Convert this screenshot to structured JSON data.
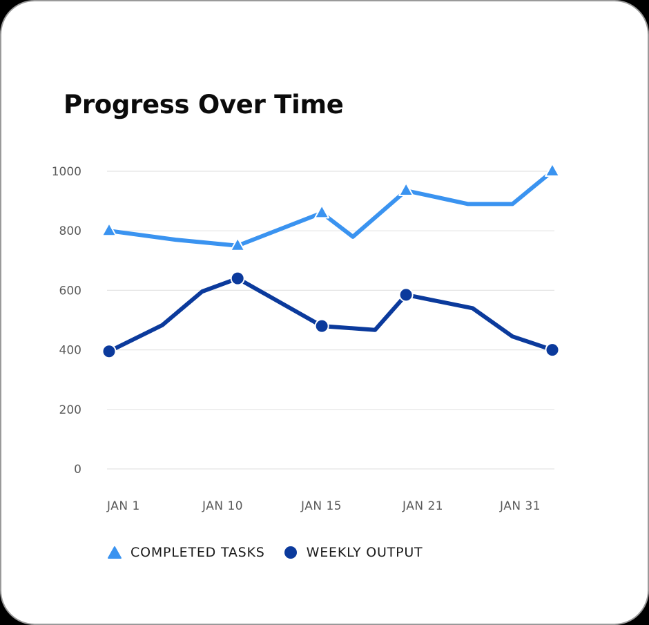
{
  "card": {
    "title": "Progress Over Time"
  },
  "colors": {
    "completed_tasks": "#3a93f0",
    "weekly_output": "#0b3a9c",
    "grid": "#e4e4e4",
    "tick_text": "#5a5a5a"
  },
  "legend": [
    {
      "label": "COMPLETED TASKS",
      "marker": "triangle-icon",
      "color": "#3a93f0"
    },
    {
      "label": "WEEKLY OUTPUT",
      "marker": "circle-icon",
      "color": "#0b3a9c"
    }
  ],
  "chart_data": {
    "type": "line",
    "title": "Progress Over Time",
    "xlabel": "",
    "ylabel": "",
    "ylim": [
      0,
      1000
    ],
    "yticks": [
      0,
      200,
      400,
      600,
      800,
      1000
    ],
    "grid": true,
    "legend_position": "bottom-left",
    "x_tick_labels": [
      "JAN 1",
      "JAN 10",
      "JAN 15",
      "JAN 21",
      "JAN 31"
    ],
    "series": [
      {
        "name": "COMPLETED TASKS",
        "marker": "triangle",
        "color": "#3a93f0",
        "points": [
          {
            "x": 0.0,
            "y": 800,
            "label": "JAN 1",
            "marker": true
          },
          {
            "x": 0.15,
            "y": 770,
            "marker": false
          },
          {
            "x": 0.29,
            "y": 750,
            "label": "JAN 10",
            "marker": true
          },
          {
            "x": 0.48,
            "y": 860,
            "label": "JAN 15",
            "marker": true
          },
          {
            "x": 0.55,
            "y": 780,
            "marker": false
          },
          {
            "x": 0.67,
            "y": 935,
            "label": "JAN 21",
            "marker": true
          },
          {
            "x": 0.81,
            "y": 890,
            "marker": false
          },
          {
            "x": 0.91,
            "y": 890,
            "marker": false
          },
          {
            "x": 1.0,
            "y": 1000,
            "label": "JAN 31",
            "marker": true
          }
        ]
      },
      {
        "name": "WEEKLY OUTPUT",
        "marker": "circle",
        "color": "#0b3a9c",
        "points": [
          {
            "x": 0.0,
            "y": 395,
            "label": "JAN 1",
            "marker": true
          },
          {
            "x": 0.12,
            "y": 483,
            "marker": false
          },
          {
            "x": 0.21,
            "y": 596,
            "marker": false
          },
          {
            "x": 0.29,
            "y": 640,
            "label": "JAN 10",
            "marker": true
          },
          {
            "x": 0.48,
            "y": 480,
            "label": "JAN 15",
            "marker": true
          },
          {
            "x": 0.6,
            "y": 467,
            "marker": false
          },
          {
            "x": 0.67,
            "y": 585,
            "label": "JAN 21",
            "marker": true
          },
          {
            "x": 0.82,
            "y": 540,
            "marker": false
          },
          {
            "x": 0.91,
            "y": 445,
            "marker": false
          },
          {
            "x": 1.0,
            "y": 400,
            "label": "JAN 31",
            "marker": true
          }
        ]
      }
    ]
  }
}
